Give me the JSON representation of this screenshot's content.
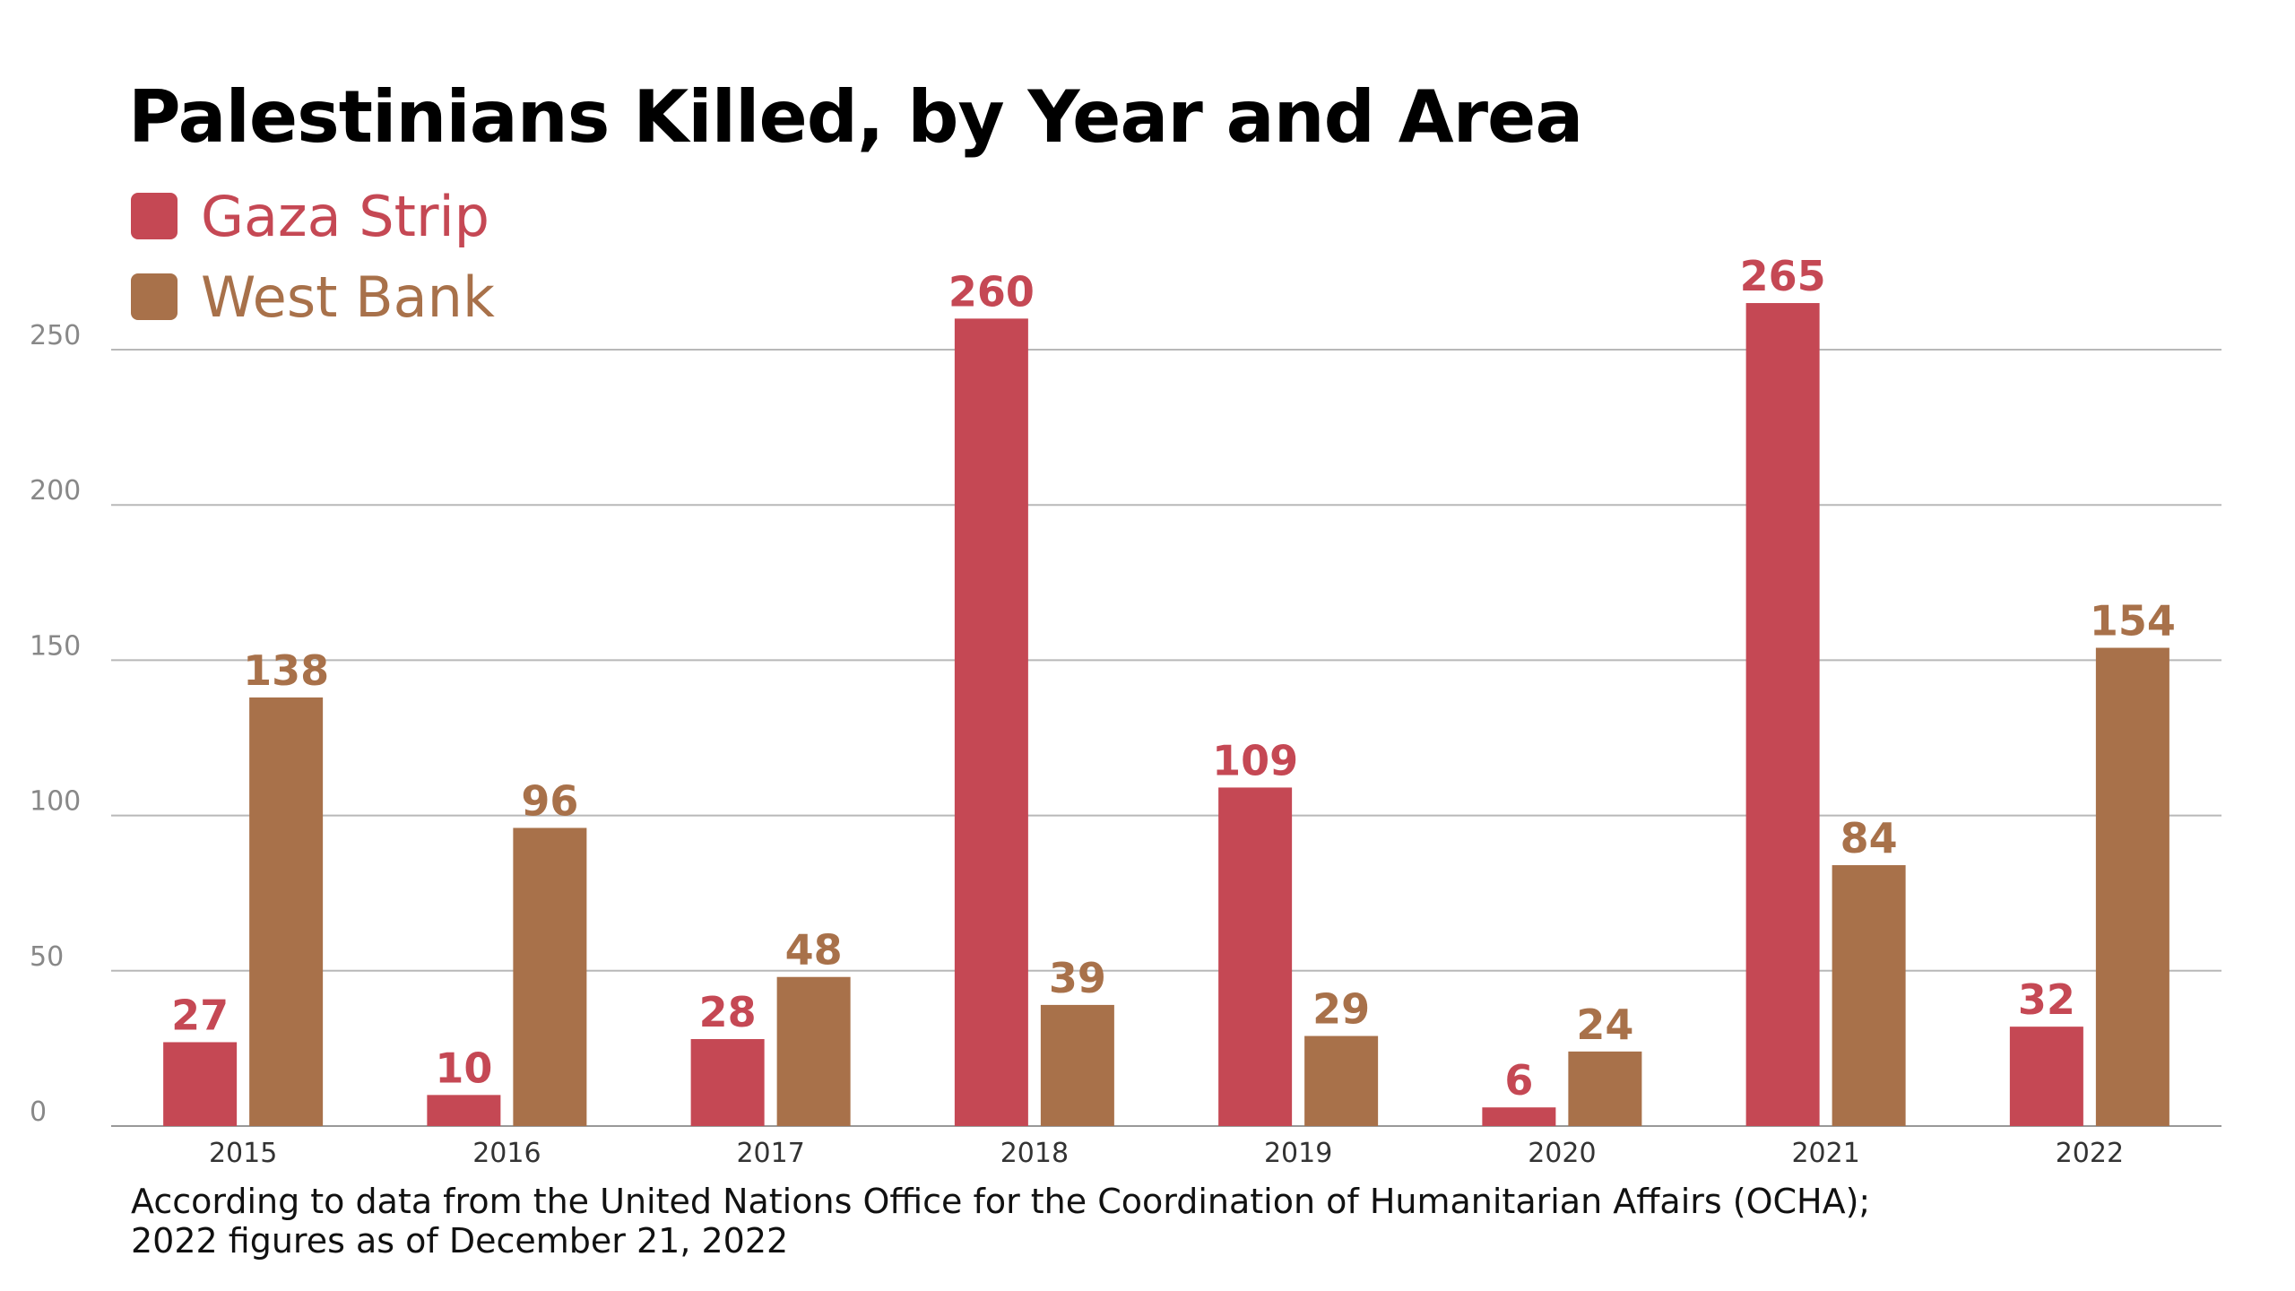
{
  "colors": {
    "gaza": "#c54854",
    "west_bank": "#a8714a",
    "grid": "#b8b8b8",
    "axis": "#999999"
  },
  "chart_data": {
    "type": "bar",
    "title": "Palestinians Killed, by Year and Area",
    "categories": [
      "2015",
      "2016",
      "2017",
      "2018",
      "2019",
      "2020",
      "2021",
      "2022"
    ],
    "series": [
      {
        "name": "Gaza Strip",
        "values": [
          27,
          10,
          28,
          260,
          109,
          6,
          265,
          32
        ]
      },
      {
        "name": "West Bank",
        "values": [
          138,
          96,
          48,
          39,
          29,
          24,
          84,
          154
        ]
      }
    ],
    "yticks": [
      "0",
      "50",
      "100",
      "150",
      "200",
      "250"
    ],
    "ylim": [
      0,
      250
    ],
    "xlabel": "",
    "ylabel": "",
    "legend_position": "top-left",
    "grid": true
  },
  "footnote": {
    "line1": "According to data from the United Nations Office for the Coordination of Humanitarian Affairs (OCHA);",
    "line2": "2022 figures as of December 21, 2022"
  }
}
